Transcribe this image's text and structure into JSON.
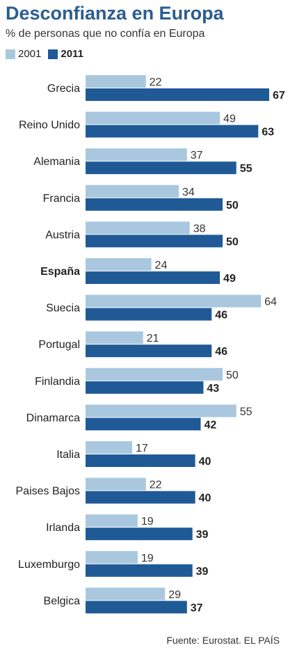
{
  "title": "Desconfianza en Europa",
  "subtitle": "% de personas que no confía en Europa",
  "source": "Fuente: Eurostat. EL PAÍS",
  "colors": {
    "s2001": "#a9c8df",
    "s2011": "#1f5a96",
    "title": "#2b5d91"
  },
  "chart_data": {
    "type": "bar",
    "orientation": "horizontal",
    "categories": [
      "Grecia",
      "Reino Unido",
      "Alemania",
      "Francia",
      "Austria",
      "España",
      "Suecia",
      "Portugal",
      "Finlandia",
      "Dinamarca",
      "Italia",
      "Paises Bajos",
      "Irlanda",
      "Luxemburgo",
      "Belgica"
    ],
    "highlight_category": "España",
    "series": [
      {
        "name": "2001",
        "values": [
          22,
          49,
          37,
          34,
          38,
          24,
          64,
          21,
          50,
          55,
          17,
          22,
          19,
          19,
          29
        ]
      },
      {
        "name": "2011",
        "values": [
          67,
          63,
          55,
          50,
          50,
          49,
          46,
          46,
          43,
          42,
          40,
          40,
          39,
          39,
          37
        ]
      }
    ],
    "xlim": [
      0,
      70
    ],
    "grid": false,
    "legend": "top-left"
  }
}
